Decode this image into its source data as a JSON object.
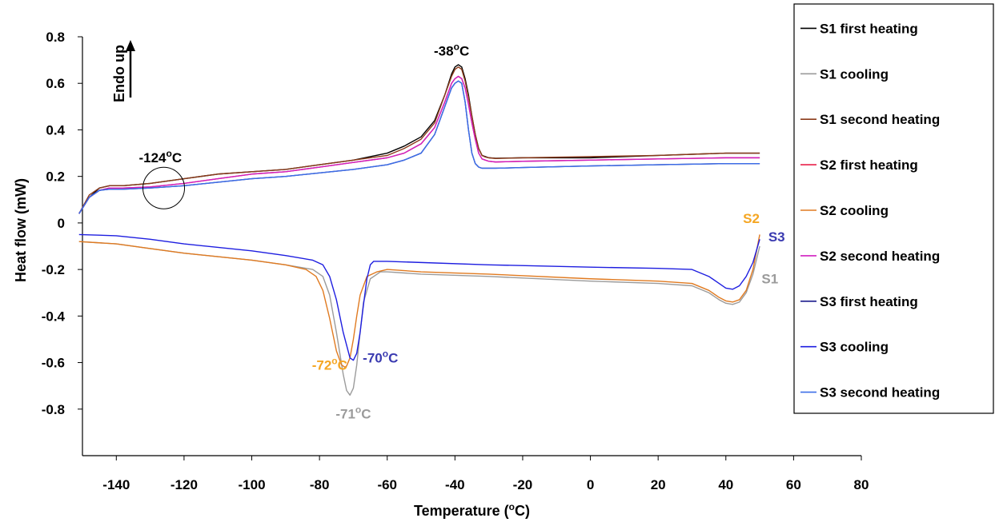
{
  "chart_data": {
    "type": "line",
    "xlabel": {
      "main": "Temperature (",
      "sup": "o",
      "end": "C)"
    },
    "ylabel": "Heat flow (mW)",
    "xlim": [
      -150,
      80
    ],
    "ylim": [
      -1.0,
      0.8
    ],
    "x_ticks": [
      -140,
      -120,
      -100,
      -80,
      -60,
      -40,
      -20,
      0,
      20,
      40,
      60,
      80
    ],
    "y_ticks": [
      0.8,
      0.6,
      0.4,
      0.2,
      0,
      -0.2,
      -0.4,
      -0.6,
      -0.8
    ],
    "grid": false,
    "legend_position": "right",
    "endo_label": "Endo up",
    "annotations": [
      {
        "id": "ann-m38",
        "main": "-38",
        "sup": "o",
        "end": "C",
        "color": "#000000",
        "x": -41,
        "y": 0.72,
        "size": 17
      },
      {
        "id": "ann-m124",
        "main": "-124",
        "sup": "o",
        "end": "C",
        "color": "#000000",
        "x": -127,
        "y": 0.26,
        "size": 17
      },
      {
        "id": "ann-m72",
        "main": "-72",
        "sup": "o",
        "end": "C",
        "color": "#F5A623",
        "x": -77,
        "y": -0.63,
        "size": 17
      },
      {
        "id": "ann-m70",
        "main": "-70",
        "sup": "o",
        "end": "C",
        "color": "#3A3AB0",
        "x": -62,
        "y": -0.6,
        "size": 17
      },
      {
        "id": "ann-m71",
        "main": "-71",
        "sup": "o",
        "end": "C",
        "color": "#9B9B9B",
        "x": -70,
        "y": -0.84,
        "size": 17
      },
      {
        "id": "ann-s2",
        "main": "S2",
        "sup": "",
        "end": "",
        "color": "#F5A623",
        "x": 47.5,
        "y": 0.0,
        "size": 17
      },
      {
        "id": "ann-s3",
        "main": "S3",
        "sup": "",
        "end": "",
        "color": "#3A3AB0",
        "x": 55,
        "y": -0.08,
        "size": 17
      },
      {
        "id": "ann-s1",
        "main": "S1",
        "sup": "",
        "end": "",
        "color": "#9B9B9B",
        "x": 53,
        "y": -0.26,
        "size": 17
      }
    ],
    "circle_marker": {
      "x": -126,
      "y": 0.15
    },
    "series": [
      {
        "name": "S1 first heating",
        "color": "#000000",
        "x": [
          -151,
          -148,
          -145,
          -142,
          -138,
          -130,
          -120,
          -110,
          -100,
          -90,
          -80,
          -70,
          -60,
          -55,
          -50,
          -46,
          -43,
          -41,
          -40,
          -39,
          -38,
          -37,
          -36,
          -35,
          -34,
          -33,
          -32,
          -31,
          -30,
          -28,
          -20,
          0,
          20,
          40,
          50
        ],
        "y": [
          0.04,
          0.11,
          0.15,
          0.16,
          0.16,
          0.17,
          0.19,
          0.21,
          0.22,
          0.23,
          0.25,
          0.27,
          0.3,
          0.33,
          0.37,
          0.44,
          0.55,
          0.64,
          0.67,
          0.68,
          0.67,
          0.62,
          0.55,
          0.46,
          0.38,
          0.32,
          0.29,
          0.285,
          0.28,
          0.278,
          0.28,
          0.28,
          0.29,
          0.3,
          0.3
        ]
      },
      {
        "name": "S1 cooling",
        "color": "#9B9B9B",
        "x": [
          -151,
          -140,
          -130,
          -120,
          -100,
          -90,
          -82,
          -79,
          -77,
          -75,
          -73,
          -72,
          -71,
          -70,
          -69,
          -68,
          -67,
          -65,
          -62,
          -60,
          -50,
          -30,
          0,
          20,
          30,
          35,
          38,
          40,
          42,
          44,
          46,
          48,
          50
        ],
        "y": [
          -0.08,
          -0.09,
          -0.11,
          -0.13,
          -0.16,
          -0.18,
          -0.2,
          -0.23,
          -0.31,
          -0.47,
          -0.65,
          -0.72,
          -0.74,
          -0.71,
          -0.61,
          -0.47,
          -0.34,
          -0.24,
          -0.21,
          -0.21,
          -0.22,
          -0.23,
          -0.25,
          -0.26,
          -0.27,
          -0.3,
          -0.33,
          -0.345,
          -0.35,
          -0.34,
          -0.3,
          -0.22,
          -0.1
        ]
      },
      {
        "name": "S1 second heating",
        "color": "#8B3A1A",
        "x": [
          -151,
          -148,
          -145,
          -142,
          -138,
          -130,
          -120,
          -110,
          -100,
          -90,
          -80,
          -70,
          -60,
          -55,
          -50,
          -46,
          -43,
          -41,
          -40,
          -39,
          -38,
          -37,
          -36,
          -35,
          -34,
          -33,
          -32,
          -31,
          -30,
          -28,
          -20,
          0,
          20,
          40,
          50
        ],
        "y": [
          0.04,
          0.12,
          0.15,
          0.16,
          0.16,
          0.17,
          0.19,
          0.21,
          0.22,
          0.23,
          0.25,
          0.27,
          0.29,
          0.32,
          0.36,
          0.43,
          0.55,
          0.63,
          0.66,
          0.67,
          0.66,
          0.61,
          0.54,
          0.46,
          0.38,
          0.32,
          0.29,
          0.283,
          0.28,
          0.277,
          0.28,
          0.285,
          0.29,
          0.3,
          0.3
        ]
      },
      {
        "name": "S2 first heating",
        "color": "#E8204A",
        "x": [
          -151,
          -148,
          -145,
          -142,
          -138,
          -130,
          -120,
          -110,
          -100,
          -90,
          -80,
          -70,
          -60,
          -55,
          -50,
          -46,
          -43,
          -41,
          -40,
          -39,
          -38,
          -37,
          -36,
          -35,
          -34,
          -33,
          -32,
          -31,
          -30,
          -28,
          -20,
          0,
          20,
          40,
          50
        ],
        "y": [
          0.04,
          0.11,
          0.14,
          0.15,
          0.15,
          0.155,
          0.17,
          0.19,
          0.21,
          0.22,
          0.24,
          0.26,
          0.28,
          0.3,
          0.34,
          0.41,
          0.52,
          0.6,
          0.62,
          0.63,
          0.62,
          0.58,
          0.51,
          0.43,
          0.36,
          0.3,
          0.275,
          0.27,
          0.265,
          0.262,
          0.265,
          0.27,
          0.275,
          0.28,
          0.28
        ]
      },
      {
        "name": "S2 cooling",
        "color": "#E07A20",
        "x": [
          -151,
          -140,
          -130,
          -120,
          -100,
          -90,
          -84,
          -81,
          -79,
          -77,
          -75,
          -73.5,
          -72.5,
          -72,
          -71,
          -70,
          -69,
          -68,
          -66,
          -63,
          -60,
          -50,
          -30,
          0,
          20,
          30,
          35,
          38,
          40,
          42,
          44,
          46,
          48,
          50
        ],
        "y": [
          -0.08,
          -0.09,
          -0.11,
          -0.13,
          -0.16,
          -0.18,
          -0.2,
          -0.23,
          -0.29,
          -0.41,
          -0.55,
          -0.61,
          -0.62,
          -0.615,
          -0.58,
          -0.5,
          -0.4,
          -0.31,
          -0.23,
          -0.21,
          -0.2,
          -0.21,
          -0.22,
          -0.24,
          -0.25,
          -0.26,
          -0.29,
          -0.32,
          -0.335,
          -0.34,
          -0.33,
          -0.29,
          -0.2,
          -0.05
        ]
      },
      {
        "name": "S2 second heating",
        "color": "#D020C0",
        "x": [
          -151,
          -148,
          -145,
          -142,
          -138,
          -130,
          -120,
          -110,
          -100,
          -90,
          -80,
          -70,
          -60,
          -55,
          -50,
          -46,
          -43,
          -41,
          -40,
          -39,
          -38,
          -37,
          -36,
          -35,
          -34,
          -33,
          -32,
          -31,
          -30,
          -28,
          -20,
          0,
          20,
          40,
          50
        ],
        "y": [
          0.04,
          0.11,
          0.14,
          0.15,
          0.15,
          0.155,
          0.17,
          0.19,
          0.21,
          0.22,
          0.24,
          0.26,
          0.28,
          0.3,
          0.34,
          0.41,
          0.52,
          0.6,
          0.62,
          0.63,
          0.62,
          0.58,
          0.51,
          0.43,
          0.36,
          0.3,
          0.275,
          0.27,
          0.265,
          0.262,
          0.265,
          0.27,
          0.275,
          0.28,
          0.28
        ]
      },
      {
        "name": "S3 first heating",
        "color": "#1A1A8C",
        "x": [
          -151,
          -148,
          -145,
          -142,
          -138,
          -130,
          -120,
          -110,
          -100,
          -90,
          -80,
          -70,
          -60,
          -55,
          -50,
          -46,
          -43,
          -41,
          -40,
          -39,
          -38,
          -37,
          -36,
          -35,
          -34,
          -33,
          -32,
          -31,
          -30,
          -28,
          -20,
          0,
          20,
          40,
          50
        ],
        "y": [
          0.04,
          0.11,
          0.14,
          0.145,
          0.145,
          0.15,
          0.16,
          0.175,
          0.19,
          0.2,
          0.215,
          0.23,
          0.25,
          0.27,
          0.3,
          0.38,
          0.5,
          0.58,
          0.6,
          0.61,
          0.6,
          0.52,
          0.4,
          0.3,
          0.255,
          0.24,
          0.235,
          0.235,
          0.235,
          0.235,
          0.238,
          0.245,
          0.25,
          0.255,
          0.255
        ]
      },
      {
        "name": "S3 cooling",
        "color": "#1E1EE0",
        "x": [
          -151,
          -140,
          -130,
          -120,
          -100,
          -90,
          -82,
          -79,
          -77,
          -75,
          -73,
          -71,
          -70,
          -69,
          -68,
          -67,
          -66,
          -65,
          -64,
          -62,
          -60,
          -50,
          -30,
          0,
          20,
          30,
          35,
          38,
          40,
          42,
          44,
          46,
          48,
          50
        ],
        "y": [
          -0.05,
          -0.055,
          -0.07,
          -0.09,
          -0.12,
          -0.14,
          -0.16,
          -0.18,
          -0.23,
          -0.33,
          -0.47,
          -0.58,
          -0.59,
          -0.56,
          -0.47,
          -0.35,
          -0.24,
          -0.18,
          -0.165,
          -0.165,
          -0.165,
          -0.17,
          -0.18,
          -0.19,
          -0.195,
          -0.2,
          -0.23,
          -0.26,
          -0.28,
          -0.285,
          -0.27,
          -0.23,
          -0.17,
          -0.07
        ]
      },
      {
        "name": "S3 second heating",
        "color": "#3C6EE8",
        "x": [
          -151,
          -148,
          -145,
          -142,
          -138,
          -130,
          -120,
          -110,
          -100,
          -90,
          -80,
          -70,
          -60,
          -55,
          -50,
          -46,
          -43,
          -41,
          -40,
          -39,
          -38,
          -37,
          -36,
          -35,
          -34,
          -33,
          -32,
          -31,
          -30,
          -28,
          -20,
          0,
          20,
          40,
          50
        ],
        "y": [
          0.04,
          0.11,
          0.14,
          0.145,
          0.145,
          0.15,
          0.16,
          0.175,
          0.19,
          0.2,
          0.215,
          0.23,
          0.25,
          0.27,
          0.3,
          0.38,
          0.5,
          0.58,
          0.6,
          0.61,
          0.6,
          0.52,
          0.4,
          0.3,
          0.255,
          0.24,
          0.235,
          0.235,
          0.235,
          0.235,
          0.238,
          0.245,
          0.25,
          0.255,
          0.255
        ]
      }
    ]
  }
}
